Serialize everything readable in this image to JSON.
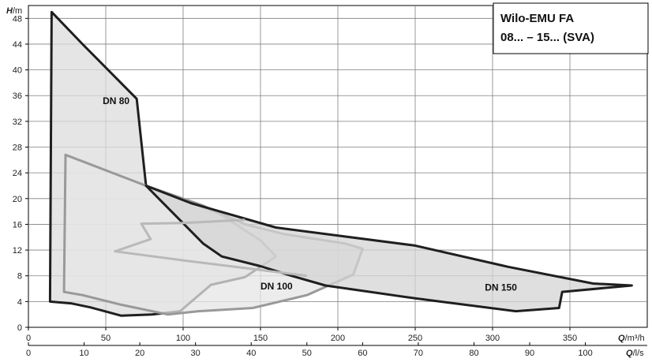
{
  "chart_data": {
    "type": "area",
    "title_lines": [
      "Wilo-EMU FA",
      "08... – 15... (SVA)"
    ],
    "y_axis": {
      "label_main": "H",
      "label_unit": "/m",
      "range": [
        0,
        50
      ],
      "ticks": [
        0,
        4,
        8,
        12,
        16,
        20,
        24,
        28,
        32,
        36,
        40,
        44,
        48
      ]
    },
    "x_axis_primary": {
      "label_main": "Q",
      "label_unit": "/m³/h",
      "range": [
        0,
        400
      ],
      "ticks": [
        0,
        50,
        100,
        150,
        200,
        250,
        300,
        350
      ]
    },
    "x_axis_secondary": {
      "label_main": "Q",
      "label_unit": "/l/s",
      "ticks": [
        0,
        10,
        20,
        30,
        40,
        50,
        60,
        70,
        80,
        90,
        100
      ]
    },
    "grid": true,
    "series": [
      {
        "name": "DN 80",
        "color": "#1f1f1f",
        "fill": "#dcdcdc",
        "points": [
          [
            15,
            49
          ],
          [
            35,
            44
          ],
          [
            70,
            35.5
          ],
          [
            76,
            22
          ],
          [
            92,
            20.5
          ],
          [
            123,
            17.7
          ],
          [
            150,
            13.5
          ],
          [
            160,
            11
          ],
          [
            140,
            7.8
          ],
          [
            118,
            6.6
          ],
          [
            98,
            2.5
          ],
          [
            80,
            2
          ],
          [
            60,
            1.8
          ],
          [
            40,
            3.1
          ],
          [
            28,
            3.7
          ],
          [
            14,
            4
          ]
        ]
      },
      {
        "name": "DN 100",
        "color": "#999999",
        "fill": "#e6e6e6",
        "points": [
          [
            24,
            26.8
          ],
          [
            76,
            22
          ],
          [
            112,
            19
          ],
          [
            140,
            16
          ],
          [
            165,
            14.5
          ],
          [
            205,
            13
          ],
          [
            216,
            12.2
          ],
          [
            210,
            8.2
          ],
          [
            180,
            5
          ],
          [
            145,
            3
          ],
          [
            110,
            2.5
          ],
          [
            90,
            2
          ],
          [
            60,
            3.5
          ],
          [
            35,
            5
          ],
          [
            23,
            5.5
          ]
        ]
      },
      {
        "name": "DN 150",
        "color": "#1f1f1f",
        "fill": "#d4d4d4",
        "points": [
          [
            76,
            22
          ],
          [
            105,
            19.3
          ],
          [
            160,
            15.5
          ],
          [
            250,
            12.7
          ],
          [
            310,
            9.4
          ],
          [
            365,
            6.8
          ],
          [
            390,
            6.5
          ],
          [
            345,
            5.5
          ],
          [
            343,
            3
          ],
          [
            315,
            2.5
          ],
          [
            250,
            4.5
          ],
          [
            192,
            6.5
          ],
          [
            170,
            8
          ],
          [
            150,
            9.5
          ],
          [
            125,
            11
          ],
          [
            113,
            13
          ]
        ]
      }
    ],
    "inner_line": {
      "color": "#b9b9b9",
      "points": [
        [
          140,
          16.7
        ],
        [
          100,
          16.2
        ],
        [
          73,
          16.1
        ],
        [
          79,
          13.7
        ],
        [
          56,
          11.8
        ],
        [
          100,
          10.4
        ],
        [
          140,
          9.2
        ],
        [
          180,
          8
        ]
      ]
    },
    "region_labels": [
      {
        "text": "DN 80",
        "at": [
          48,
          34.7
        ]
      },
      {
        "text": "DN 100",
        "at": [
          150,
          5.9
        ]
      },
      {
        "text": "DN 150",
        "at": [
          295,
          5.7
        ]
      }
    ]
  }
}
